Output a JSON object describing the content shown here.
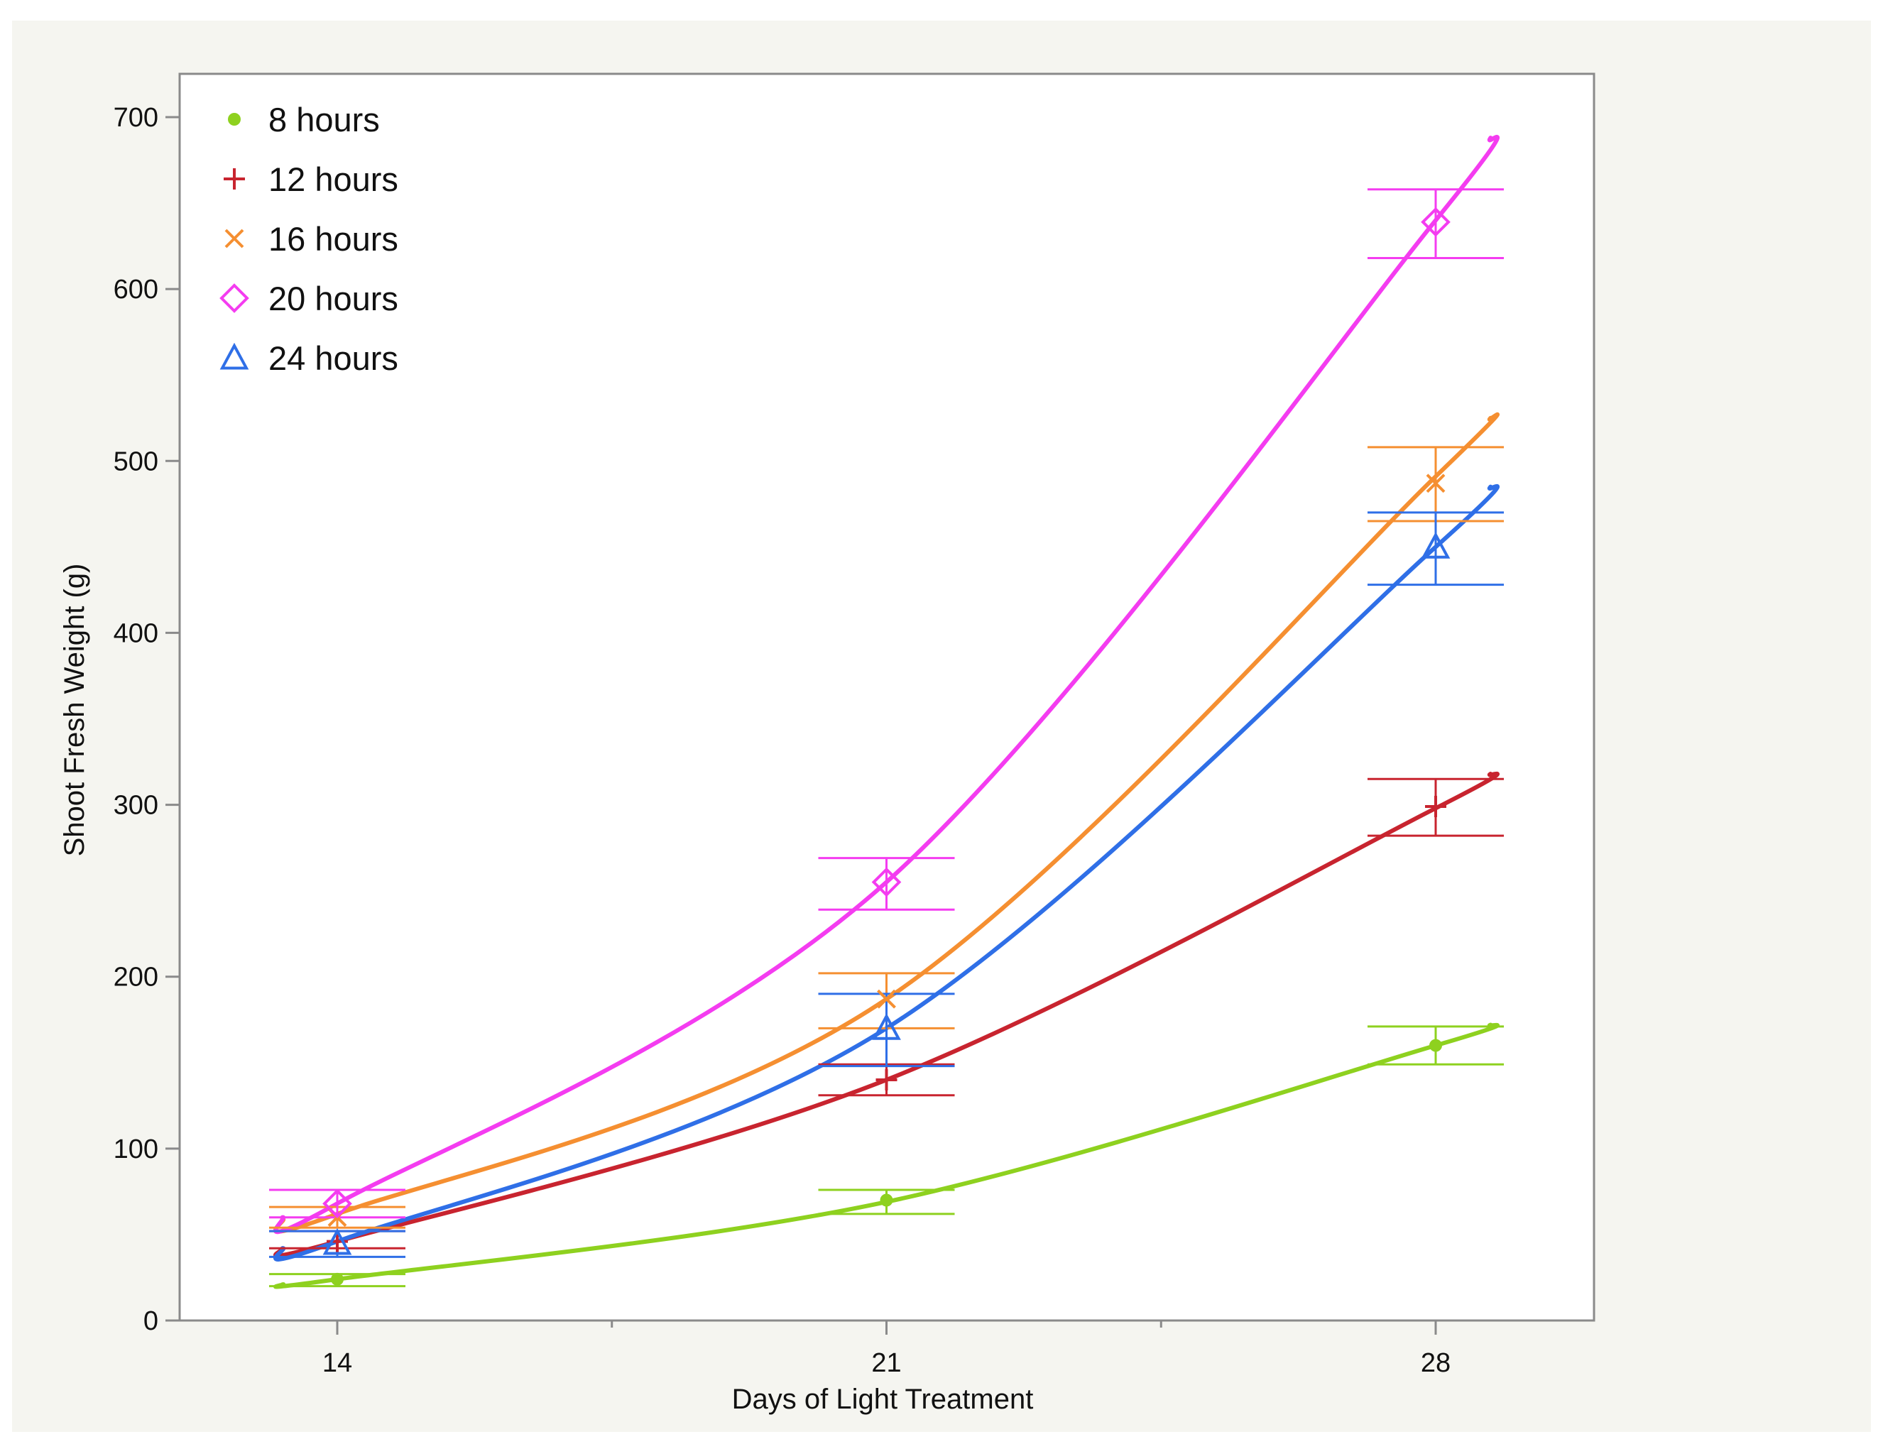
{
  "chart_data": {
    "type": "line",
    "xlabel": "Days of Light Treatment",
    "ylabel": "Shoot Fresh Weight (g)",
    "x": [
      14,
      21,
      28
    ],
    "x_ticks": [
      14,
      21,
      28
    ],
    "y_ticks": [
      0,
      100,
      200,
      300,
      400,
      500,
      600,
      700
    ],
    "xlim": [
      12,
      30
    ],
    "ylim": [
      0,
      720
    ],
    "grid": false,
    "legend_position": "top-left",
    "series": [
      {
        "name": "8 hours",
        "color": "#8ed11f",
        "marker": "dot",
        "values": [
          24,
          70,
          160
        ],
        "error": [
          [
            20,
            27
          ],
          [
            62,
            76
          ],
          [
            149,
            171
          ]
        ],
        "fit": [
          [
            13.3,
            21
          ],
          [
            14,
            24
          ],
          [
            21,
            69
          ],
          [
            28,
            160
          ],
          [
            28.7,
            172
          ]
        ]
      },
      {
        "name": "12 hours",
        "color": "#c8242f",
        "marker": "plus",
        "values": [
          46,
          140,
          299
        ],
        "error": [
          [
            42,
            52
          ],
          [
            131,
            149
          ],
          [
            282,
            315
          ]
        ],
        "fit": [
          [
            13.3,
            42
          ],
          [
            14,
            46
          ],
          [
            21,
            140
          ],
          [
            28,
            298
          ],
          [
            28.7,
            318
          ]
        ]
      },
      {
        "name": "16 hours",
        "color": "#f58f31",
        "marker": "x",
        "values": [
          60,
          187,
          487
        ],
        "error": [
          [
            54,
            66
          ],
          [
            170,
            202
          ],
          [
            465,
            508
          ]
        ],
        "fit": [
          [
            13.3,
            59
          ],
          [
            14,
            62
          ],
          [
            21,
            187
          ],
          [
            28,
            491
          ],
          [
            28.7,
            525
          ]
        ]
      },
      {
        "name": "20 hours",
        "color": "#f43cf0",
        "marker": "diamond",
        "values": [
          68,
          255,
          639
        ],
        "error": [
          [
            60,
            76
          ],
          [
            239,
            269
          ],
          [
            618,
            658
          ]
        ],
        "fit": [
          [
            13.3,
            60
          ],
          [
            14,
            68
          ],
          [
            21,
            255
          ],
          [
            28,
            640
          ],
          [
            28.7,
            688
          ]
        ]
      },
      {
        "name": "24 hours",
        "color": "#2f6fe7",
        "marker": "triangle",
        "values": [
          45,
          170,
          450
        ],
        "error": [
          [
            37,
            52
          ],
          [
            148,
            190
          ],
          [
            428,
            470
          ]
        ],
        "fit": [
          [
            13.3,
            42
          ],
          [
            14,
            46
          ],
          [
            21,
            170
          ],
          [
            28,
            450
          ],
          [
            28.7,
            485
          ]
        ]
      }
    ]
  },
  "colors": {
    "frame_background": "#f5f5f0",
    "plot_background": "#ffffff",
    "axis": "#8a8a8a"
  },
  "legend": {
    "items": [
      "8 hours",
      "12 hours",
      "16 hours",
      "20 hours",
      "24 hours"
    ]
  }
}
